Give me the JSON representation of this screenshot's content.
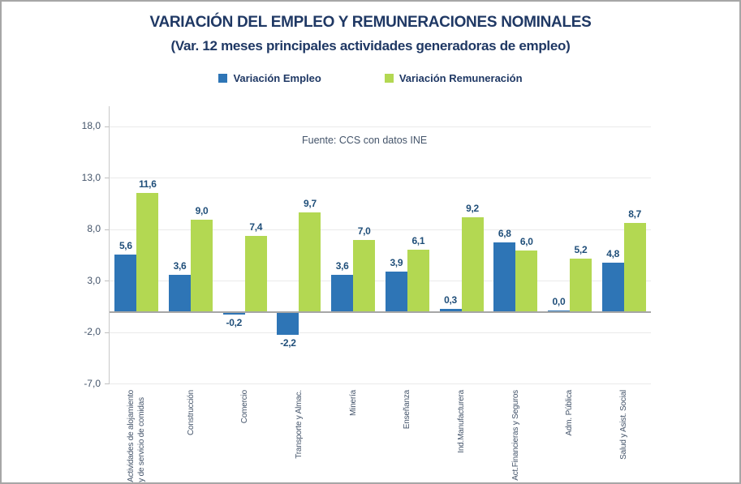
{
  "window": {
    "background": "#ffffff",
    "border_color": "#a6a6a6"
  },
  "header": {
    "title": "VARIACIÓN DEL EMPLEO Y REMUNERACIONES NOMINALES",
    "subtitle": "(Var. 12 meses principales actividades generadoras de empleo)",
    "color": "#1f3864"
  },
  "legend": {
    "items": [
      {
        "label": "Variación Empleo",
        "color": "#2e75b6"
      },
      {
        "label": "Variación Remuneración",
        "color": "#b3d852"
      }
    ]
  },
  "source_note": "Fuente: CCS con datos INE",
  "chart_data": {
    "type": "bar",
    "title": "VARIACIÓN DEL EMPLEO Y REMUNERACIONES NOMINALES",
    "subtitle": "(Var. 12 meses principales actividades generadoras de empleo)",
    "annotation": "Fuente: CCS con datos INE",
    "categories": [
      "Actividades de alojamiento\ny de servicio de comidas",
      "Construcción",
      "Comercio",
      "Transporte y Almac.",
      "Minería",
      "Enseñanza",
      "Ind.Manufacturera",
      "Act.Financieras y Seguros",
      "Adm. Pública",
      "Salud y Asist. Social"
    ],
    "series": [
      {
        "name": "Variación Empleo",
        "color": "#2e75b6",
        "values": [
          5.6,
          3.6,
          -0.2,
          -2.2,
          3.6,
          3.9,
          0.3,
          6.8,
          0.0,
          4.8
        ]
      },
      {
        "name": "Variación Remuneración",
        "color": "#b3d852",
        "values": [
          11.6,
          9.0,
          7.4,
          9.7,
          7.0,
          6.1,
          9.2,
          6.0,
          5.2,
          8.7
        ]
      }
    ],
    "y_ticks": [
      18,
      13,
      8,
      3,
      -2,
      -7
    ],
    "y_tick_labels": [
      "18,0",
      "13,0",
      "8,0",
      "3,0",
      "-2,0",
      "-7,0"
    ],
    "ylim": [
      -7,
      20
    ],
    "decimal_separator": ",",
    "grid": true,
    "data_labels": true,
    "legend_position": "top",
    "grid_color": "#eaeaea",
    "axis_color": "#a6a6a6",
    "label_color": "#1f4e79",
    "category_color": "#44546a"
  }
}
